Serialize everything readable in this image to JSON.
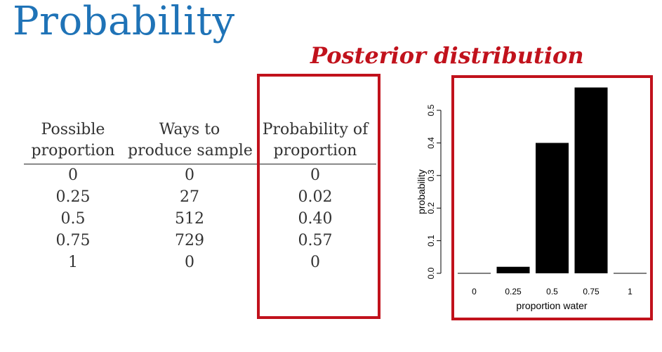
{
  "title": "Probability",
  "posterior_heading": "Posterior distribution",
  "table": {
    "columns": [
      {
        "line1": "Possible",
        "line2": "proportion"
      },
      {
        "line1": "Ways to",
        "line2": "produce sample"
      },
      {
        "line1": "Probability of",
        "line2": "proportion"
      }
    ],
    "rows": [
      [
        "0",
        "0",
        "0"
      ],
      [
        "0.25",
        "27",
        "0.02"
      ],
      [
        "0.5",
        "512",
        "0.40"
      ],
      [
        "0.75",
        "729",
        "0.57"
      ],
      [
        "1",
        "0",
        "0"
      ]
    ]
  },
  "colors": {
    "title": "#1f73b7",
    "accent": "#c1121c",
    "bars": "#000000"
  },
  "chart_data": {
    "type": "bar",
    "categories": [
      "0",
      "0.25",
      "0.5",
      "0.75",
      "1"
    ],
    "values": [
      0,
      0.02,
      0.4,
      0.57,
      0
    ],
    "xlabel": "proportion water",
    "ylabel": "probability",
    "ylim": [
      0,
      0.6
    ],
    "yticks": [
      "0.0",
      "0.1",
      "0.2",
      "0.3",
      "0.4",
      "0.5"
    ],
    "grid": false,
    "legend": "none"
  }
}
